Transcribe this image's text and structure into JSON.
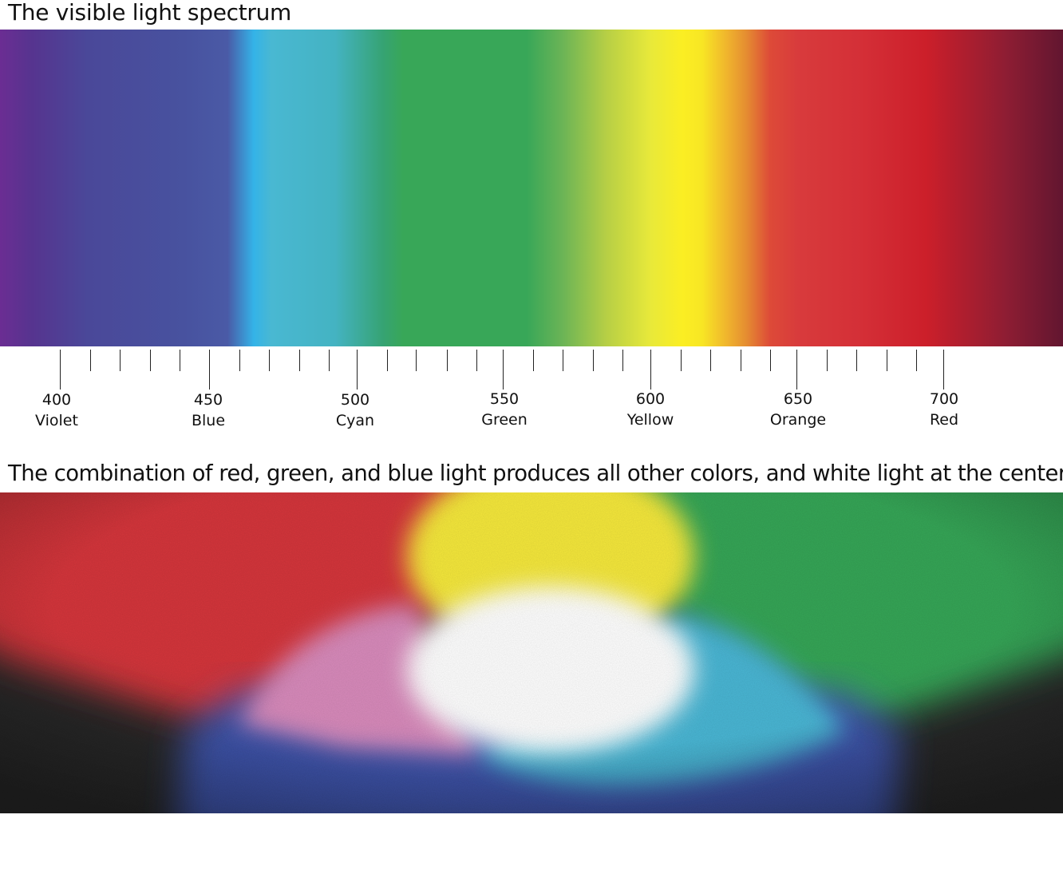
{
  "spectrum_section": {
    "title": "The visible light spectrum",
    "colors": [
      "#6b2d93",
      "#48529f",
      "#34b3e8",
      "#38a758",
      "#fbee23",
      "#e58d31",
      "#d42f37",
      "#621630"
    ],
    "ticks": [
      {
        "wavelength": "400",
        "color_name": "Violet"
      },
      {
        "wavelength": "450",
        "color_name": "Blue"
      },
      {
        "wavelength": "500",
        "color_name": "Cyan"
      },
      {
        "wavelength": "550",
        "color_name": "Green"
      },
      {
        "wavelength": "600",
        "color_name": "Yellow"
      },
      {
        "wavelength": "650",
        "color_name": "Orange"
      },
      {
        "wavelength": "700",
        "color_name": "Red"
      }
    ]
  },
  "mixing_section": {
    "title": "The combination of red, green, and blue light produces all other colors, and white light at the center",
    "light_colors": {
      "red": "#d4343a",
      "green": "#36a557",
      "blue": "#3f57b0",
      "yellow": "#f5e83a",
      "magenta": "#d88abb",
      "cyan": "#49b6d4",
      "white": "#ffffff",
      "background": "#2a2a2a"
    }
  }
}
